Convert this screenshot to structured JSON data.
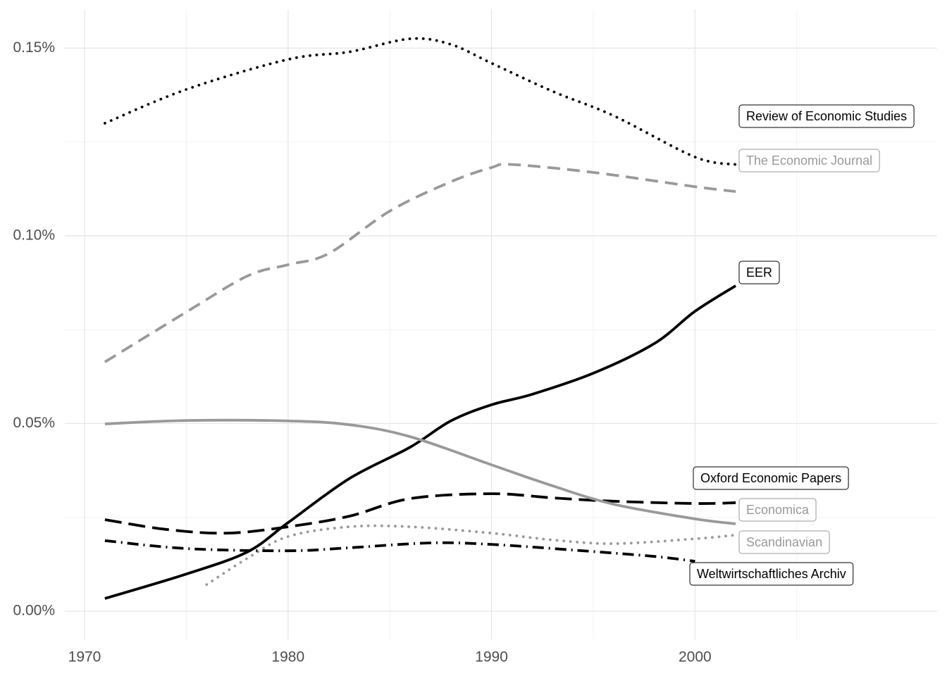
{
  "chart_data": {
    "type": "line",
    "xlim": [
      1969.03,
      2011.9
    ],
    "ylim": [
      -0.0075,
      0.1602
    ],
    "xticks": [
      1970,
      1980,
      1990,
      2000
    ],
    "yticks": [
      {
        "value": 0,
        "label": "0.00%"
      },
      {
        "value": 0.05,
        "label": "0.05%"
      },
      {
        "value": 0.1,
        "label": "0.10%"
      },
      {
        "value": 0.15,
        "label": "0.15%"
      }
    ],
    "minor_xticks": [
      1975,
      1985,
      1995,
      2005
    ],
    "minor_yticks": [
      0.025,
      0.075,
      0.125
    ],
    "grid": true,
    "series": [
      {
        "name": "Review of Economic Studies",
        "color": "#000000",
        "linetype": "dotted",
        "x": [
          1971,
          1975,
          1980,
          1983,
          1986,
          1988,
          1990,
          1993,
          1996,
          2000,
          2002
        ],
        "values": [
          0.13,
          0.139,
          0.147,
          0.149,
          0.1525,
          0.151,
          0.146,
          0.1385,
          0.132,
          0.121,
          0.119
        ]
      },
      {
        "name": "The Economic Journal",
        "color": "#999999",
        "linetype": "dashed",
        "x": [
          1971,
          1975,
          1978,
          1980,
          1982,
          1985,
          1988,
          1990,
          1991,
          1995,
          2000,
          2002
        ],
        "values": [
          0.0664,
          0.0797,
          0.0893,
          0.0923,
          0.0953,
          0.1066,
          0.1144,
          0.1182,
          0.119,
          0.1169,
          0.1131,
          0.1118
        ]
      },
      {
        "name": "EER",
        "color": "#000000",
        "linetype": "solid",
        "x": [
          1971,
          1975,
          1978,
          1980,
          1983,
          1986,
          1988,
          1990,
          1992,
          1995,
          1998,
          2000,
          2002
        ],
        "values": [
          0.0034,
          0.0099,
          0.0158,
          0.0236,
          0.0353,
          0.0437,
          0.0507,
          0.055,
          0.0578,
          0.0634,
          0.0713,
          0.0799,
          0.0867
        ]
      },
      {
        "name": "Oxford Economic Papers",
        "color": "#000000",
        "linetype": "longdash",
        "x": [
          1971,
          1974,
          1977,
          1980,
          1983,
          1986,
          1990,
          1993,
          1996,
          2000,
          2002
        ],
        "values": [
          0.0244,
          0.0218,
          0.0208,
          0.0225,
          0.0253,
          0.03,
          0.0313,
          0.0302,
          0.0293,
          0.0287,
          0.0289
        ]
      },
      {
        "name": "Economica",
        "color": "#999999",
        "linetype": "solid",
        "x": [
          1971,
          1975,
          1980,
          1983,
          1986,
          1990,
          1993,
          1996,
          2000,
          2002
        ],
        "values": [
          0.0499,
          0.0508,
          0.0507,
          0.0497,
          0.0465,
          0.039,
          0.0334,
          0.0285,
          0.0246,
          0.0233
        ]
      },
      {
        "name": "Scandinavian",
        "color": "#999999",
        "linetype": "dotted",
        "x": [
          1976,
          1978,
          1980,
          1983,
          1986,
          1990,
          1993,
          1996,
          2000,
          2002
        ],
        "values": [
          0.0071,
          0.0141,
          0.0199,
          0.0225,
          0.0225,
          0.0208,
          0.019,
          0.018,
          0.0193,
          0.0203
        ]
      },
      {
        "name": "Weltwirtschaftliches Archiv",
        "color": "#000000",
        "linetype": "dashdot",
        "x": [
          1971,
          1975,
          1980,
          1983,
          1987,
          1990,
          1994,
          1998,
          2000
        ],
        "values": [
          0.0188,
          0.0167,
          0.0161,
          0.0169,
          0.0182,
          0.0178,
          0.0163,
          0.0146,
          0.0133
        ]
      }
    ]
  }
}
